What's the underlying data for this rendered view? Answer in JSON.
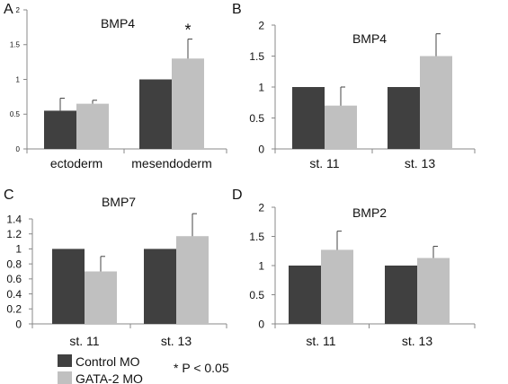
{
  "colors": {
    "control": "#404040",
    "gata2": "#c0c0c0",
    "axis": "#888888"
  },
  "legend": {
    "items": [
      "Control MO",
      "GATA-2 MO"
    ],
    "footnote": "* P < 0.05"
  },
  "chart_data": [
    {
      "panel": "A",
      "type": "bar",
      "title": "BMP4",
      "categories": [
        "ectoderm",
        "mesendoderm"
      ],
      "series": [
        {
          "name": "Control MO",
          "values": [
            0.55,
            1.0
          ],
          "errors": [
            0.18,
            0
          ]
        },
        {
          "name": "GATA-2 MO",
          "values": [
            0.65,
            1.3
          ],
          "errors": [
            0.05,
            0.28
          ]
        }
      ],
      "ylim": [
        0,
        2
      ],
      "yticks": [
        "0",
        "0.5",
        "1",
        "1.5",
        "2"
      ],
      "annotations": [
        {
          "text": "*",
          "category": 1,
          "series": 1
        }
      ],
      "grid": false
    },
    {
      "panel": "B",
      "type": "bar",
      "title": "BMP4",
      "categories": [
        "st. 11",
        "st. 13"
      ],
      "series": [
        {
          "name": "Control MO",
          "values": [
            1.0,
            1.0
          ],
          "errors": [
            0,
            0
          ]
        },
        {
          "name": "GATA-2 MO",
          "values": [
            0.7,
            1.5
          ],
          "errors": [
            0.3,
            0.36
          ]
        }
      ],
      "ylim": [
        0,
        2
      ],
      "yticks": [
        "0",
        "0.5",
        "1",
        "1.5",
        "2"
      ],
      "grid": false
    },
    {
      "panel": "C",
      "type": "bar",
      "title": "BMP7",
      "categories": [
        "st. 11",
        "st. 13"
      ],
      "series": [
        {
          "name": "Control MO",
          "values": [
            1.0,
            1.0
          ],
          "errors": [
            0,
            0
          ]
        },
        {
          "name": "GATA-2 MO",
          "values": [
            0.7,
            1.17
          ],
          "errors": [
            0.2,
            0.3
          ]
        }
      ],
      "ylim": [
        0,
        1.4
      ],
      "yticks": [
        "0",
        "0.2",
        "0.4",
        "0.6",
        "0.8",
        "1",
        "1.2",
        "1.4"
      ],
      "grid": false
    },
    {
      "panel": "D",
      "type": "bar",
      "title": "BMP2",
      "categories": [
        "st. 11",
        "st. 13"
      ],
      "series": [
        {
          "name": "Control MO",
          "values": [
            1.0,
            1.0
          ],
          "errors": [
            0,
            0
          ]
        },
        {
          "name": "GATA-2 MO",
          "values": [
            1.27,
            1.13
          ],
          "errors": [
            0.32,
            0.2
          ]
        }
      ],
      "ylim": [
        0,
        2
      ],
      "yticks": [
        "0",
        "0.5",
        "1",
        "1.5",
        "2"
      ],
      "grid": false
    }
  ]
}
